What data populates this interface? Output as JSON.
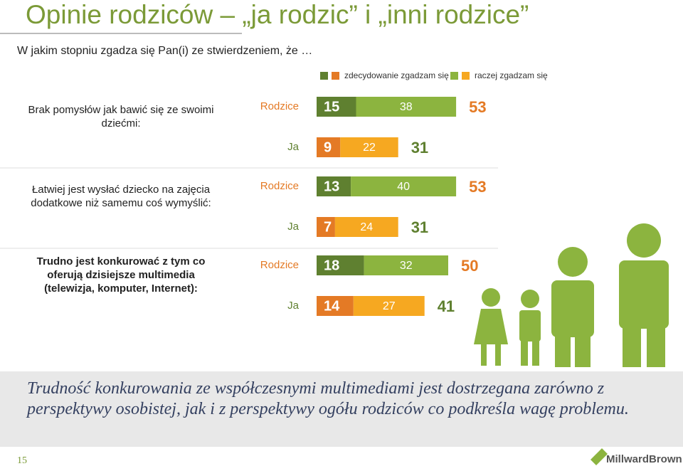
{
  "header": {
    "title": "Opinie rodziców – „ja rodzic” i „inni rodzice”",
    "page_number": "15",
    "logo": "MillwardBrown"
  },
  "chart_data": {
    "type": "stacked-bar",
    "subtitle": "W jakim stopniu zgadza się Pan(i) ze stwierdzeniem, że …",
    "series": [
      {
        "name": "zdecydowanie zgadzam się",
        "colors": [
          "#5f8030",
          "#e47a25"
        ]
      },
      {
        "name": "raczej zgadzam się",
        "colors": [
          "#8cb43f",
          "#f6a821"
        ]
      }
    ],
    "total_colors": [
      "#e47a25",
      "#5f8030"
    ],
    "xlim": [
      0,
      60
    ],
    "groups": [
      {
        "label": "Brak pomysłów  jak bawić się ze swoimi dziećmi:",
        "emphasis": false,
        "rows": [
          {
            "name": "Rodzice",
            "values": [
              15,
              38
            ],
            "total": 53
          },
          {
            "name": "Ja",
            "values": [
              9,
              22
            ],
            "total": 31
          }
        ]
      },
      {
        "label": "Łatwiej jest wysłać dziecko na zajęcia dodatkowe niż samemu coś wymyślić:",
        "emphasis": false,
        "rows": [
          {
            "name": "Rodzice",
            "values": [
              13,
              40
            ],
            "total": 53
          },
          {
            "name": "Ja",
            "values": [
              7,
              24
            ],
            "total": 31
          }
        ]
      },
      {
        "label": "Trudno jest konkurować z tym co oferują dzisiejsze multimedia (telewizja, komputer, Internet):",
        "emphasis": true,
        "rows": [
          {
            "name": "Rodzice",
            "values": [
              18,
              32
            ],
            "total": 50
          },
          {
            "name": "Ja",
            "values": [
              14,
              27
            ],
            "total": 41
          }
        ]
      }
    ]
  },
  "conclusion": "Trudność konkurowania ze współczesnymi multimediami jest dostrzegana zarówno z perspektywy osobistej, jak i z perspektywy ogółu rodziców co podkreśla wagę problemu."
}
